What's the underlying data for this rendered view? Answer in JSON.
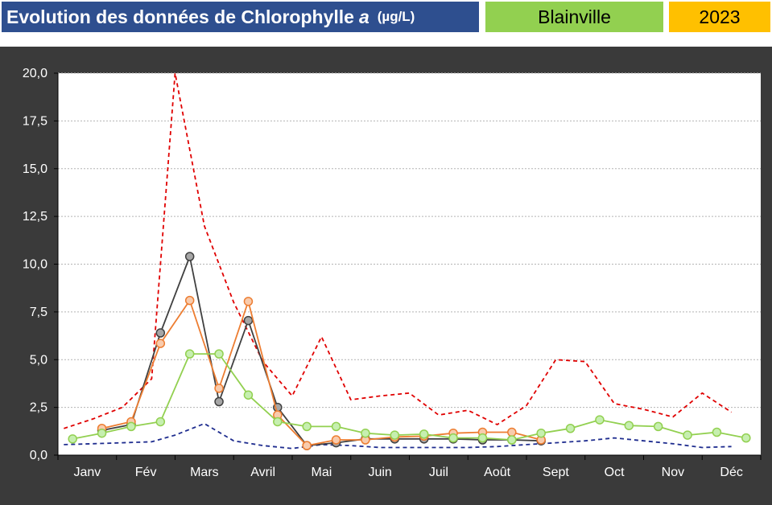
{
  "header": {
    "title_text": "Evolution des données de Chlorophylle",
    "title_variable": "a",
    "title_unit": "(µg/L)",
    "site": "Blainville",
    "year": "2023"
  },
  "colors": {
    "title_bg": "#2e4f8f",
    "site_bg": "#92d050",
    "year_bg": "#ffc000",
    "chart_bg": "#3a3a3a",
    "plot_bg": "#ffffff",
    "gray_series": "#404040",
    "gray_marker": "#a6a6a6",
    "orange_series": "#ed7d31",
    "orange_marker": "#f8cbad",
    "green_series": "#92d050",
    "green_marker": "#c6efb0",
    "red_dashed": "#e00000",
    "blue_dashed": "#1f2d8f"
  },
  "chart_data": {
    "type": "line",
    "x_months": [
      "Janv",
      "Fév",
      "Mars",
      "Avril",
      "Mai",
      "Juin",
      "Juil",
      "Août",
      "Sept",
      "Oct",
      "Nov",
      "Déc"
    ],
    "ylim": [
      0,
      20
    ],
    "yticks": [
      "0,0",
      "2,5",
      "5,0",
      "7,5",
      "10,0",
      "12,5",
      "15,0",
      "17,5",
      "20,0"
    ],
    "grid": true,
    "series": [
      {
        "key": "red_dashed",
        "style": "dashed",
        "points": [
          [
            0.1,
            1.4
          ],
          [
            0.6,
            1.9
          ],
          [
            1.1,
            2.5
          ],
          [
            1.6,
            4.0
          ],
          [
            2.0,
            20.0
          ],
          [
            2.5,
            12.0
          ],
          [
            3.0,
            8.0
          ],
          [
            3.5,
            4.9
          ],
          [
            4.0,
            3.1
          ],
          [
            4.5,
            6.2
          ],
          [
            5.0,
            2.9
          ],
          [
            5.5,
            3.1
          ],
          [
            6.0,
            3.25
          ],
          [
            6.5,
            2.1
          ],
          [
            7.0,
            2.35
          ],
          [
            7.5,
            1.6
          ],
          [
            8.0,
            2.6
          ],
          [
            8.5,
            5.0
          ],
          [
            9.0,
            4.9
          ],
          [
            9.5,
            2.7
          ],
          [
            10.0,
            2.4
          ],
          [
            10.5,
            2.0
          ],
          [
            11.0,
            3.25
          ],
          [
            11.5,
            2.25
          ]
        ]
      },
      {
        "key": "blue_dashed",
        "style": "dashed",
        "points": [
          [
            0.1,
            0.55
          ],
          [
            0.6,
            0.6
          ],
          [
            1.1,
            0.65
          ],
          [
            1.6,
            0.7
          ],
          [
            2.0,
            1.05
          ],
          [
            2.5,
            1.65
          ],
          [
            3.0,
            0.75
          ],
          [
            3.5,
            0.5
          ],
          [
            4.0,
            0.35
          ],
          [
            4.5,
            0.55
          ],
          [
            5.0,
            0.5
          ],
          [
            5.5,
            0.4
          ],
          [
            6.0,
            0.4
          ],
          [
            6.5,
            0.4
          ],
          [
            7.0,
            0.4
          ],
          [
            7.5,
            0.45
          ],
          [
            8.0,
            0.55
          ],
          [
            8.5,
            0.65
          ],
          [
            9.0,
            0.75
          ],
          [
            9.5,
            0.9
          ],
          [
            10.0,
            0.75
          ],
          [
            10.5,
            0.6
          ],
          [
            11.0,
            0.4
          ],
          [
            11.5,
            0.45
          ]
        ]
      },
      {
        "key": "gray",
        "style": "solid-markers",
        "points": [
          [
            0.75,
            1.3
          ],
          [
            1.25,
            1.6
          ],
          [
            1.75,
            6.4
          ],
          [
            2.25,
            10.4
          ],
          [
            2.75,
            2.8
          ],
          [
            3.25,
            7.05
          ],
          [
            3.75,
            2.5
          ],
          [
            4.25,
            0.5
          ],
          [
            4.75,
            0.65
          ],
          [
            5.25,
            0.85
          ],
          [
            5.75,
            0.85
          ],
          [
            6.25,
            0.85
          ],
          [
            6.75,
            0.85
          ],
          [
            7.25,
            0.8
          ],
          [
            7.75,
            0.8
          ],
          [
            8.25,
            0.75
          ]
        ]
      },
      {
        "key": "orange",
        "style": "solid-markers",
        "points": [
          [
            0.75,
            1.4
          ],
          [
            1.25,
            1.75
          ],
          [
            1.75,
            5.85
          ],
          [
            2.25,
            8.1
          ],
          [
            2.75,
            3.5
          ],
          [
            3.25,
            8.05
          ],
          [
            3.75,
            2.1
          ],
          [
            4.25,
            0.5
          ],
          [
            4.75,
            0.8
          ],
          [
            5.25,
            0.8
          ],
          [
            5.75,
            0.95
          ],
          [
            6.25,
            1.0
          ],
          [
            6.75,
            1.15
          ],
          [
            7.25,
            1.2
          ],
          [
            7.75,
            1.2
          ],
          [
            8.25,
            0.8
          ]
        ]
      },
      {
        "key": "green",
        "style": "solid-markers",
        "points": [
          [
            0.25,
            0.85
          ],
          [
            0.75,
            1.15
          ],
          [
            1.25,
            1.5
          ],
          [
            1.75,
            1.75
          ],
          [
            2.25,
            5.3
          ],
          [
            2.75,
            5.3
          ],
          [
            3.25,
            3.15
          ],
          [
            3.75,
            1.75
          ],
          [
            4.25,
            1.5
          ],
          [
            4.75,
            1.5
          ],
          [
            5.25,
            1.15
          ],
          [
            5.75,
            1.05
          ],
          [
            6.25,
            1.1
          ],
          [
            6.75,
            0.9
          ],
          [
            7.25,
            0.9
          ],
          [
            7.75,
            0.8
          ],
          [
            8.25,
            1.15
          ],
          [
            8.75,
            1.4
          ],
          [
            9.25,
            1.85
          ],
          [
            9.75,
            1.55
          ],
          [
            10.25,
            1.5
          ],
          [
            10.75,
            1.05
          ],
          [
            11.25,
            1.2
          ],
          [
            11.75,
            0.9
          ]
        ]
      }
    ]
  }
}
